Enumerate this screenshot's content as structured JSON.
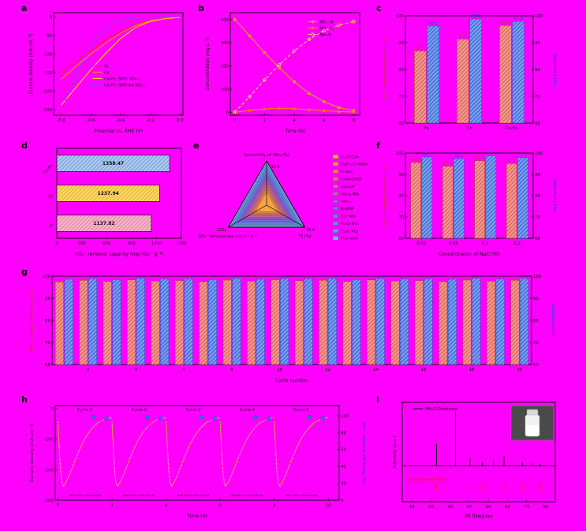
{
  "figure": {
    "background": "#ff00ff"
  },
  "panels": {
    "a": {
      "label": "a"
    },
    "b": {
      "label": "b"
    },
    "c": {
      "label": "c"
    },
    "d": {
      "label": "d"
    },
    "e": {
      "label": "e"
    },
    "f": {
      "label": "f"
    },
    "g": {
      "label": "g"
    },
    "h": {
      "label": "h"
    },
    "i": {
      "label": "i"
    }
  },
  "colors": {
    "background": "#ff00ff",
    "bar1_fill": "#f49e97",
    "bar1_hatch": "#d96459",
    "bar1_edge": "#b23b30",
    "bar1_label": "#c0392b",
    "bar2_fill": "#7fa3ec",
    "bar2_hatch": "#3f68d8",
    "bar2_edge": "#2b4fc7",
    "bar2_label": "#1f4fc0",
    "axis_left": "#c0392b",
    "axis_right": "#2040c0"
  },
  "chart_data": [
    {
      "panel": "a",
      "type": "line",
      "xlabel": "Potential vs. RHE (V)",
      "ylabel": "Current density (mA cm⁻²)",
      "xlim": [
        -0.85,
        0.02
      ],
      "ylim": [
        -265,
        12
      ],
      "xticks": [
        -0.8,
        -0.6,
        -0.4,
        -0.2,
        0.0
      ],
      "xtick_decimals": 1,
      "yticks": [
        0,
        -50,
        -100,
        -150,
        -200,
        -250
      ],
      "series": [
        {
          "name": "Fe",
          "color": "#ff2020",
          "x": [
            -0.8,
            -0.7,
            -0.6,
            -0.5,
            -0.4,
            -0.3,
            -0.2,
            -0.1,
            0.0
          ],
          "y": [
            -152,
            -120,
            -90,
            -62,
            -38,
            -20,
            -9,
            -3,
            -1
          ]
        },
        {
          "name": "Co",
          "color": "#ff8c00",
          "x": [
            -0.8,
            -0.7,
            -0.6,
            -0.5,
            -0.4,
            -0.3,
            -0.2,
            -0.1,
            0.0
          ],
          "y": [
            -168,
            -133,
            -100,
            -70,
            -44,
            -23,
            -10,
            -4,
            -1
          ]
        },
        {
          "name": "Co₁Fe₁ (With NO₃⁻)",
          "color": "#ffd700",
          "x": [
            -0.8,
            -0.7,
            -0.6,
            -0.5,
            -0.4,
            -0.3,
            -0.2,
            -0.1,
            0.0
          ],
          "y": [
            -238,
            -190,
            -142,
            -98,
            -58,
            -28,
            -12,
            -4,
            -1
          ]
        },
        {
          "name": "Co₁Fe₁ (Without NO₃⁻)",
          "color": "#4169e1",
          "dash": "4 2.5",
          "x": [
            -0.8,
            -0.75,
            -0.7,
            -0.65,
            -0.6,
            -0.55,
            -0.5,
            -0.45,
            -0.4,
            -0.3,
            -0.2,
            -0.1,
            0.0
          ],
          "y": [
            -252,
            -206,
            -160,
            -117,
            -80,
            -52,
            -31,
            -18,
            -9,
            -3,
            -1,
            0,
            0
          ]
        }
      ]
    },
    {
      "panel": "b",
      "type": "line",
      "xlabel": "Time (h)",
      "ylabel": "Concentration (mg L⁻¹)",
      "xlim": [
        -0.3,
        8.4
      ],
      "ylim": [
        -12,
        430
      ],
      "xticks": [
        0,
        2,
        4,
        6,
        8
      ],
      "xtick_decimals": 0,
      "yticks": [
        0,
        100,
        200,
        300,
        400
      ],
      "series": [
        {
          "name": "NO₃⁻-N",
          "color": "#d4a017",
          "marker": "square",
          "x": [
            0,
            1,
            2,
            3,
            4,
            5,
            6,
            7,
            8
          ],
          "y": [
            400,
            330,
            258,
            192,
            132,
            82,
            46,
            21,
            8
          ]
        },
        {
          "name": "NO₂⁻-N",
          "color": "#ff7f0e",
          "marker": "triangle",
          "x": [
            0,
            1,
            2,
            3,
            4,
            5,
            6,
            7,
            8
          ],
          "y": [
            0,
            9,
            15,
            18,
            16,
            12,
            8,
            4,
            2
          ]
        },
        {
          "name": "NH₃-N",
          "color": "#f0d264",
          "dash": "4 2.5",
          "marker": "circle-open",
          "x": [
            0,
            1,
            2,
            3,
            4,
            5,
            6,
            7,
            8
          ],
          "y": [
            2,
            68,
            140,
            206,
            265,
            315,
            352,
            376,
            392
          ]
        }
      ]
    },
    {
      "panel": "c",
      "type": "grouped-bars",
      "categories": [
        "Fe",
        "Co",
        "Co₁Fe₁"
      ],
      "xlabel": "",
      "ylabel_left": "NO₃⁻ removal efficiency (%)",
      "ylabel_right": "Selectivity (%)",
      "ylim": [
        60,
        100
      ],
      "yticks": [
        60,
        70,
        80,
        90,
        100
      ],
      "series": [
        {
          "name": "NO₃⁻ removal efficiency",
          "values": [
            86.9,
            91.3,
            96.4
          ],
          "labels": [
            "86.9",
            "91.3",
            "96.4"
          ]
        },
        {
          "name": "Selectivity",
          "values": [
            96.2,
            98.8,
            97.9
          ],
          "labels": [
            "96.2",
            "98.8",
            "97.9"
          ]
        }
      ]
    },
    {
      "panel": "d",
      "type": "barh",
      "xlabel": "NO₃⁻ removal capacity (mg NO₃⁻ g⁻¹)",
      "xlim": [
        0,
        1500
      ],
      "xticks": [
        0,
        300,
        600,
        900,
        1200,
        1500
      ],
      "categories": [
        "Fe",
        "Co",
        "Co₁Fe₁"
      ],
      "values": [
        1137.82,
        1237.94,
        1358.47
      ],
      "labels": [
        "1137.82",
        "1237.94",
        "1358.47"
      ],
      "bar_fills": [
        "#f6b8cb",
        "#ffd966",
        "#b4cdf0"
      ],
      "bar_hatches": [
        "#e58bab",
        "#e6b93f",
        "#7ba3dd"
      ]
    },
    {
      "panel": "e",
      "type": "ternary",
      "axes": [
        {
          "label": "Selectivity of NH₃ (%)",
          "value": "99.8",
          "position": "top"
        },
        {
          "label": "NO₃⁻ removal rate (mg h⁻¹ g⁻¹)",
          "value": "2206",
          "position": "bottom-left"
        },
        {
          "label": "FE (%)",
          "value": "96.6",
          "position": "bottom-right"
        }
      ],
      "entries": [
        {
          "name": "Cu-PTCDA",
          "scale": 0.3,
          "color": "#f5a742"
        },
        {
          "name": "Cu/Cu₂O NWAs",
          "scale": 0.36,
          "color": "#f2924b"
        },
        {
          "name": "Fe SAC",
          "scale": 0.42,
          "color": "#ee7d5c"
        },
        {
          "name": "Co₃O₄@NiO",
          "scale": 0.48,
          "color": "#e36a80"
        },
        {
          "name": "CuCoSP",
          "scale": 0.54,
          "color": "#cf64a6"
        },
        {
          "name": "Pd-Cu NPs",
          "scale": 0.6,
          "color": "#b560c4"
        },
        {
          "name": "TiO₂₋ₓ",
          "scale": 0.66,
          "color": "#9a5ed8"
        },
        {
          "name": "Ni₃B/NF",
          "scale": 0.72,
          "color": "#8465e4"
        },
        {
          "name": "CoP NAs",
          "scale": 0.79,
          "color": "#7377ea"
        },
        {
          "name": "Fe₂O₃ NRs",
          "scale": 0.86,
          "color": "#6689ee"
        },
        {
          "name": "Cu₂O NCs",
          "scale": 0.93,
          "color": "#5f9bee"
        },
        {
          "name": "This work",
          "scale": 1.0,
          "color": "#79b6ea"
        }
      ]
    },
    {
      "panel": "f",
      "type": "grouped-bars",
      "categories": [
        "0.02",
        "0.05",
        "0.1",
        "0.2"
      ],
      "xlabel": "Concentration of NaCl (M)",
      "ylabel_left": "NO₃⁻ removal efficiency (%)",
      "ylabel_right": "Selectivity (%)",
      "ylim": [
        60,
        100
      ],
      "yticks": [
        60,
        70,
        80,
        90,
        100
      ],
      "series": [
        {
          "name": "NO₃⁻ removal efficiency",
          "values": [
            95.6,
            93.8,
            96.4,
            95.1
          ],
          "labels": [
            "95.6",
            "93.8",
            "96.4",
            "95.1"
          ]
        },
        {
          "name": "Selectivity",
          "values": [
            98.2,
            97.4,
            98.7,
            97.9
          ],
          "labels": [
            "98.2",
            "97.4",
            "98.7",
            "97.9"
          ]
        }
      ]
    },
    {
      "panel": "g",
      "type": "grouped-bars",
      "categories": [
        "1",
        "2",
        "3",
        "4",
        "5",
        "6",
        "7",
        "8",
        "9",
        "10",
        "11",
        "12",
        "13",
        "14",
        "15",
        "16",
        "17",
        "18",
        "19",
        "20"
      ],
      "show_tick_every": 2,
      "xlabel": "Cycle number",
      "ylabel_left": "NO₃⁻ removal efficiency (%)",
      "ylabel_right": "Selectivity (%)",
      "ylim": [
        60,
        100
      ],
      "yticks": [
        60,
        70,
        80,
        90,
        100
      ],
      "series": [
        {
          "name": "NO₃⁻ removal efficiency",
          "values": [
            97.4,
            98.1,
            97.6,
            98.3,
            97.8,
            98.0,
            97.5,
            98.2,
            97.7,
            98.4,
            97.9,
            98.1,
            97.6,
            98.3,
            97.8,
            98.0,
            97.5,
            98.2,
            97.7,
            98.1
          ]
        },
        {
          "name": "Selectivity",
          "values": [
            98.6,
            98.9,
            98.4,
            99.0,
            98.7,
            98.8,
            98.5,
            99.1,
            98.6,
            98.9,
            98.8,
            99.0,
            98.5,
            98.9,
            98.7,
            98.8,
            98.6,
            99.0,
            98.7,
            98.9
          ]
        }
      ]
    },
    {
      "panel": "h",
      "type": "cycling",
      "xlabel": "Time (h)",
      "xlim": [
        -0.1,
        10.4
      ],
      "xticks": [
        0,
        2,
        4,
        6,
        8,
        10
      ],
      "ylabel_left": "Current density (mA cm⁻²)",
      "ylim_left": [
        -300,
        10
      ],
      "yticks_left": [
        0,
        -100,
        -200,
        -300
      ],
      "ylabel_right": "NO₃⁻ removal efficiency (%)",
      "ylim_right": [
        0,
        112
      ],
      "yticks_right": [
        0,
        20,
        40,
        60,
        80,
        100
      ],
      "cycle_labels": [
        "Cycle 1",
        "Cycle 2",
        "Cycle 3",
        "Cycle 4",
        "Cycle 5"
      ],
      "cycle_duration": 2,
      "curve_color": "#f0c93c",
      "dot_color": "#2e6fe0",
      "profile": [
        [
          0,
          -45
        ],
        [
          0.05,
          -130
        ],
        [
          0.1,
          -205
        ],
        [
          0.15,
          -242
        ],
        [
          0.2,
          -255
        ],
        [
          0.3,
          -241
        ],
        [
          0.4,
          -222
        ],
        [
          0.5,
          -200
        ],
        [
          0.6,
          -177
        ],
        [
          0.7,
          -155
        ],
        [
          0.8,
          -134
        ],
        [
          0.9,
          -115
        ],
        [
          1.0,
          -98
        ],
        [
          1.1,
          -84
        ],
        [
          1.2,
          -71
        ],
        [
          1.3,
          -61
        ],
        [
          1.4,
          -52
        ],
        [
          1.5,
          -45
        ],
        [
          1.6,
          -40
        ],
        [
          1.7,
          -36
        ],
        [
          1.8,
          -33
        ],
        [
          1.9,
          -31
        ],
        [
          1.98,
          -30
        ]
      ],
      "efficiency_points": [
        {
          "x": 1.3,
          "y": 98.6
        },
        {
          "x": 1.8,
          "y": 96.8
        },
        {
          "x": 3.3,
          "y": 98.2
        },
        {
          "x": 3.8,
          "y": 96.5
        },
        {
          "x": 5.3,
          "y": 98.4
        },
        {
          "x": 5.8,
          "y": 96.9
        },
        {
          "x": 7.3,
          "y": 98.1
        },
        {
          "x": 7.8,
          "y": 96.6
        },
        {
          "x": 9.3,
          "y": 98.3
        },
        {
          "x": 9.8,
          "y": 96.7
        }
      ],
      "annotation": "Add fresh electrolyte",
      "annotation_x": [
        1.0,
        3.0,
        5.0,
        7.0,
        9.0
      ]
    },
    {
      "panel": "i",
      "type": "xrd",
      "xlabel": "2θ (Degree)",
      "ylabel": "Intensity (a.u.)",
      "xlim": [
        5,
        85
      ],
      "xticks": [
        10,
        20,
        30,
        40,
        50,
        60,
        70,
        80
      ],
      "sample_label": "NH₄Cl Produced",
      "reference_label": "NH₄Cl PDF#07-0007",
      "line_color": "#161616",
      "ref_color": "#e02020",
      "peaks": [
        {
          "t": 22.9,
          "i": 40
        },
        {
          "t": 32.8,
          "i": 100
        },
        {
          "t": 40.4,
          "i": 14
        },
        {
          "t": 46.9,
          "i": 6
        },
        {
          "t": 52.7,
          "i": 10
        },
        {
          "t": 58.2,
          "i": 18
        },
        {
          "t": 67.8,
          "i": 6
        },
        {
          "t": 72.5,
          "i": 8
        },
        {
          "t": 77.2,
          "i": 4
        }
      ]
    }
  ]
}
